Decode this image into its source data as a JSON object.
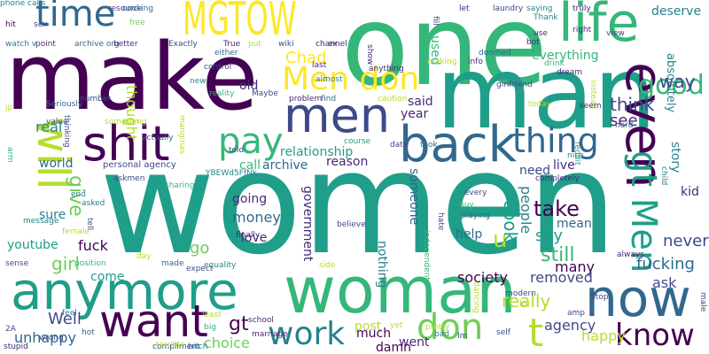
{
  "palette": {
    "dark_purple": "#440154",
    "indigo": "#482878",
    "blue_violet": "#3e4989",
    "steel_blue": "#31688e",
    "teal": "#26828e",
    "sea_green": "#1f9e89",
    "green": "#35b779",
    "lime": "#6ece58",
    "yellow_green": "#b5de2b",
    "yellow": "#fde725"
  },
  "words": [
    {
      "text": "women",
      "color": "#1f9e89"
    },
    {
      "text": "make",
      "color": "#440154"
    },
    {
      "text": "one",
      "color": "#35b779"
    },
    {
      "text": "man",
      "color": "#1f9e89"
    },
    {
      "text": "anymore",
      "color": "#1f9e89"
    },
    {
      "text": "woman",
      "color": "#35b779"
    },
    {
      "text": "MGTOW",
      "color": "#fde725"
    },
    {
      "text": "life",
      "color": "#35b779"
    },
    {
      "text": "men",
      "color": "#3e4989"
    },
    {
      "text": "shit",
      "color": "#440154"
    },
    {
      "text": "time",
      "color": "#31688e"
    },
    {
      "text": "even",
      "color": "#440154"
    },
    {
      "text": "now",
      "color": "#31688e"
    },
    {
      "text": "want",
      "color": "#440154"
    },
    {
      "text": "will",
      "color": "#b5de2b"
    },
    {
      "text": "back",
      "color": "#31688e"
    },
    {
      "text": "Men don",
      "color": "#fde725"
    },
    {
      "text": "thing",
      "color": "#31688e"
    },
    {
      "text": "pay",
      "color": "#35b779"
    },
    {
      "text": "work",
      "color": "#26828e"
    },
    {
      "text": "don",
      "color": "#6ece58"
    },
    {
      "text": "know",
      "color": "#440154"
    },
    {
      "text": "good",
      "color": "#35b779"
    },
    {
      "text": "gt Men",
      "color": "#1f9e89"
    },
    {
      "text": "t",
      "color": "#b5de2b"
    },
    {
      "text": "u",
      "color": "#b5de2b"
    },
    {
      "text": "Chad",
      "color": "#fde725"
    },
    {
      "text": "everything",
      "color": "#35b779"
    },
    {
      "text": "way",
      "color": "#3e4989"
    },
    {
      "text": "deserve",
      "color": "#26828e"
    },
    {
      "text": "absolutely",
      "color": "#26828e"
    },
    {
      "text": "used",
      "color": "#35b779"
    },
    {
      "text": "old",
      "color": "#482878"
    },
    {
      "text": "said",
      "color": "#482878"
    },
    {
      "text": "year",
      "color": "#482878"
    },
    {
      "text": "think",
      "color": "#3e4989"
    },
    {
      "text": "see",
      "color": "#482878"
    },
    {
      "text": "real",
      "color": "#26828e"
    },
    {
      "text": "relationship",
      "color": "#1f9e89"
    },
    {
      "text": "archive",
      "color": "#31688e"
    },
    {
      "text": "reason",
      "color": "#482878"
    },
    {
      "text": "world",
      "color": "#31688e"
    },
    {
      "text": "call",
      "color": "#35b779"
    },
    {
      "text": "live",
      "color": "#482878"
    },
    {
      "text": "need",
      "color": "#3e4989"
    },
    {
      "text": "story",
      "color": "#26828e"
    },
    {
      "text": "kid",
      "color": "#482878"
    },
    {
      "text": "sure",
      "color": "#26828e"
    },
    {
      "text": "give",
      "color": "#6ece58"
    },
    {
      "text": "someone",
      "color": "#31688e"
    },
    {
      "text": "take",
      "color": "#440154"
    },
    {
      "text": "mean",
      "color": "#31688e"
    },
    {
      "text": "say",
      "color": "#1f9e89"
    },
    {
      "text": "still",
      "color": "#35b779"
    },
    {
      "text": "never",
      "color": "#3e4989"
    },
    {
      "text": "money",
      "color": "#31688e"
    },
    {
      "text": "going",
      "color": "#482878"
    },
    {
      "text": "love",
      "color": "#482878"
    },
    {
      "text": "government",
      "color": "#482878"
    },
    {
      "text": "help",
      "color": "#31688e"
    },
    {
      "text": "cook",
      "color": "#1f9e89"
    },
    {
      "text": "people",
      "color": "#26828e"
    },
    {
      "text": "girl",
      "color": "#6ece58"
    },
    {
      "text": "fuck",
      "color": "#440154"
    },
    {
      "text": "go",
      "color": "#6ece58"
    },
    {
      "text": "many",
      "color": "#440154"
    },
    {
      "text": "fucking",
      "color": "#31688e"
    },
    {
      "text": "ask",
      "color": "#3e4989"
    },
    {
      "text": "come",
      "color": "#1f9e89"
    },
    {
      "text": "nothing",
      "color": "#26828e"
    },
    {
      "text": "society",
      "color": "#440154"
    },
    {
      "text": "removed",
      "color": "#3e4989"
    },
    {
      "text": "really",
      "color": "#b5de2b"
    },
    {
      "text": "Well",
      "color": "#3e4989"
    },
    {
      "text": "unhappy",
      "color": "#31688e"
    },
    {
      "text": "gt",
      "color": "#440154"
    },
    {
      "text": "choice",
      "color": "#6ece58"
    },
    {
      "text": "post",
      "color": "#b5de2b"
    },
    {
      "text": "much",
      "color": "#440154"
    },
    {
      "text": "damn",
      "color": "#440154"
    },
    {
      "text": "went",
      "color": "#482878"
    },
    {
      "text": "agency",
      "color": "#3e4989"
    },
    {
      "text": "happy",
      "color": "#b5de2b"
    },
    {
      "text": "youtube",
      "color": "#1f9e89"
    },
    {
      "text": "thought",
      "color": "#b5de2b"
    },
    {
      "text": "personal agency",
      "color": "#3e4989"
    },
    {
      "text": "hit",
      "color": "#440154"
    },
    {
      "text": "sex",
      "color": "#3e4989"
    },
    {
      "text": "watch v",
      "color": "#26828e"
    },
    {
      "text": "point",
      "color": "#482878"
    },
    {
      "text": "archive org",
      "color": "#31688e"
    },
    {
      "text": "better",
      "color": "#482878"
    },
    {
      "text": "free",
      "color": "#6ece58"
    },
    {
      "text": "resource",
      "color": "#3e4989"
    },
    {
      "text": "cooking",
      "color": "#31688e"
    },
    {
      "text": "laundry",
      "color": "#3e4989"
    },
    {
      "text": "Exactly",
      "color": "#3e4989"
    },
    {
      "text": "True",
      "color": "#482878"
    },
    {
      "text": "put",
      "color": "#b5de2b"
    },
    {
      "text": "wiki",
      "color": "#3e4989"
    },
    {
      "text": "channel",
      "color": "#482878"
    },
    {
      "text": "ex",
      "color": "#482878"
    },
    {
      "text": "either",
      "color": "#31688e"
    },
    {
      "text": "last",
      "color": "#482878"
    },
    {
      "text": "anything",
      "color": "#482878"
    },
    {
      "text": "almost",
      "color": "#26828e"
    },
    {
      "text": "find",
      "color": "#31688e"
    },
    {
      "text": "caution",
      "color": "#b5de2b"
    },
    {
      "text": "show",
      "color": "#482878"
    },
    {
      "text": "fill",
      "color": "#3e4989"
    },
    {
      "text": "making",
      "color": "#b5de2b"
    },
    {
      "text": "doomed",
      "color": "#31688e"
    },
    {
      "text": "info",
      "color": "#482878"
    },
    {
      "text": "let",
      "color": "#482878"
    },
    {
      "text": "saying",
      "color": "#26828e"
    },
    {
      "text": "Thank",
      "color": "#26828e"
    },
    {
      "text": "truly",
      "color": "#482878"
    },
    {
      "text": "use",
      "color": "#482878"
    },
    {
      "text": "right",
      "color": "#482878"
    },
    {
      "text": "view",
      "color": "#3e4989"
    },
    {
      "text": "bot",
      "color": "#482878"
    },
    {
      "text": "girlfriend",
      "color": "#3e4989"
    },
    {
      "text": "drink",
      "color": "#35b779"
    },
    {
      "text": "dream",
      "color": "#482878"
    },
    {
      "text": "instead",
      "color": "#b5de2b"
    },
    {
      "text": "today",
      "color": "#b5de2b"
    },
    {
      "text": "seem",
      "color": "#482878"
    },
    {
      "text": "hard",
      "color": "#31688e"
    },
    {
      "text": "control",
      "color": "#3e4989"
    },
    {
      "text": "new",
      "color": "#26828e"
    },
    {
      "text": "reality",
      "color": "#35b779"
    },
    {
      "text": "Maybe",
      "color": "#3e4989"
    },
    {
      "text": "problem",
      "color": "#482878"
    },
    {
      "text": "number",
      "color": "#3e4989"
    },
    {
      "text": "Seriously",
      "color": "#31688e"
    },
    {
      "text": "jp",
      "color": "#b5de2b"
    },
    {
      "text": "thinking",
      "color": "#3e4989"
    },
    {
      "text": "value",
      "color": "#3e4989"
    },
    {
      "text": "something",
      "color": "#b5de2b"
    },
    {
      "text": "plan",
      "color": "#b5de2b"
    },
    {
      "text": "actually",
      "color": "#31688e"
    },
    {
      "text": "told",
      "color": "#3e4989"
    },
    {
      "text": "course",
      "color": "#1f9e89"
    },
    {
      "text": "took",
      "color": "#31688e"
    },
    {
      "text": "reddit",
      "color": "#1f9e89"
    },
    {
      "text": "nice",
      "color": "#26828e"
    },
    {
      "text": "child",
      "color": "#26828e"
    },
    {
      "text": "completely",
      "color": "#482878"
    },
    {
      "text": "every",
      "color": "#3e4989"
    },
    {
      "text": "buy",
      "color": "#35b779"
    },
    {
      "text": "playing",
      "color": "#31688e"
    },
    {
      "text": "date",
      "color": "#3e4989"
    },
    {
      "text": "arm",
      "color": "#35b779"
    },
    {
      "text": "manginas",
      "color": "#b5de2b"
    },
    {
      "text": "YBEWd5FfNk",
      "color": "#26828e"
    },
    {
      "text": "askmen",
      "color": "#3e4989"
    },
    {
      "text": "end",
      "color": "#26828e"
    },
    {
      "text": "asked",
      "color": "#26828e"
    },
    {
      "text": "female",
      "color": "#b5de2b"
    },
    {
      "text": "message",
      "color": "#26828e"
    },
    {
      "text": "tell",
      "color": "#3e4989"
    },
    {
      "text": "position",
      "color": "#35b779"
    },
    {
      "text": "finally",
      "color": "#482878"
    },
    {
      "text": "believe",
      "color": "#3e4989"
    },
    {
      "text": "hate",
      "color": "#3e4989"
    },
    {
      "text": "independent",
      "color": "#35b779"
    },
    {
      "text": "sharing",
      "color": "#35b779"
    },
    {
      "text": "day",
      "color": "#b5de2b"
    },
    {
      "text": "made",
      "color": "#31688e"
    },
    {
      "text": "expect",
      "color": "#3e4989"
    },
    {
      "text": "equality",
      "color": "#26828e"
    },
    {
      "text": "side",
      "color": "#b5de2b"
    },
    {
      "text": "sense",
      "color": "#3e4989"
    },
    {
      "text": "feel",
      "color": "#26828e"
    },
    {
      "text": "hot",
      "color": "#31688e"
    },
    {
      "text": "least",
      "color": "#b5de2b"
    },
    {
      "text": "school",
      "color": "#482878"
    },
    {
      "text": "big",
      "color": "#35b779"
    },
    {
      "text": "bitch",
      "color": "#26828e"
    },
    {
      "text": "2A",
      "color": "#3e4989"
    },
    {
      "text": "wrong",
      "color": "#3e4989"
    },
    {
      "text": "stupid",
      "color": "#482878"
    },
    {
      "text": "compliment",
      "color": "#3e4989"
    },
    {
      "text": "terrible",
      "color": "#b5de2b"
    },
    {
      "text": "marriage",
      "color": "#482878"
    },
    {
      "text": "yet",
      "color": "#b5de2b"
    },
    {
      "text": "pretty",
      "color": "#b5de2b"
    },
    {
      "text": "bad",
      "color": "#26828e"
    },
    {
      "text": "dancing",
      "color": "#b5de2b"
    },
    {
      "text": "lot",
      "color": "#b5de2b"
    },
    {
      "text": "modern",
      "color": "#3e4989"
    },
    {
      "text": "Stop",
      "color": "#3e4989"
    },
    {
      "text": "amp",
      "color": "#3e4989"
    },
    {
      "text": "Im",
      "color": "#3e4989"
    },
    {
      "text": "self",
      "color": "#3e4989"
    },
    {
      "text": "always",
      "color": "#482878"
    },
    {
      "text": "male",
      "color": "#3e4989"
    },
    {
      "text": "phone calls",
      "color": "#26828e"
    }
  ]
}
